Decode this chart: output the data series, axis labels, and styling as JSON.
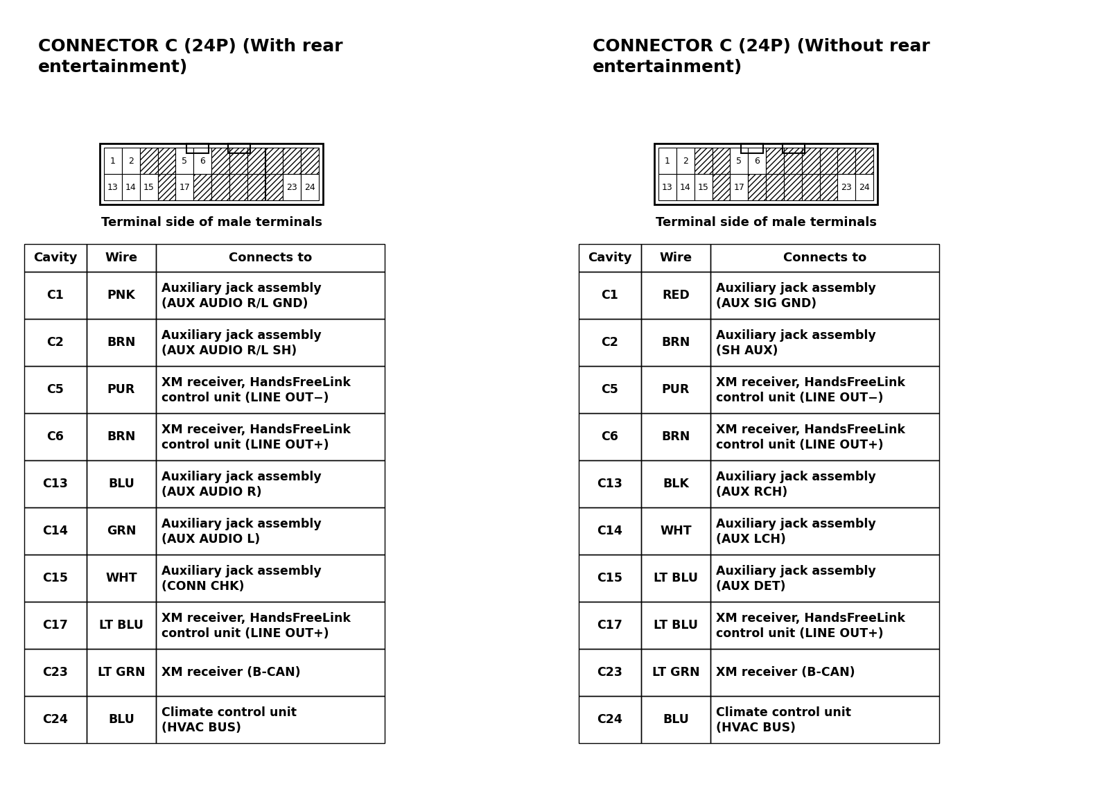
{
  "left_title_line1": "CONNECTOR C (24P) (With rear",
  "left_title_line2": "entertainment)",
  "right_title_line1": "CONNECTOR C (24P) (Without rear",
  "right_title_line2": "entertainment)",
  "connector_label": "Terminal side of male terminals",
  "left_table": {
    "headers": [
      "Cavity",
      "Wire",
      "Connects to"
    ],
    "rows": [
      [
        "C1",
        "PNK",
        "Auxiliary jack assembly\n(AUX AUDIO R/L GND)"
      ],
      [
        "C2",
        "BRN",
        "Auxiliary jack assembly\n(AUX AUDIO R/L SH)"
      ],
      [
        "C5",
        "PUR",
        "XM receiver, HandsFreeLink\ncontrol unit (LINE OUT−)"
      ],
      [
        "C6",
        "BRN",
        "XM receiver, HandsFreeLink\ncontrol unit (LINE OUT+)"
      ],
      [
        "C13",
        "BLU",
        "Auxiliary jack assembly\n(AUX AUDIO R)"
      ],
      [
        "C14",
        "GRN",
        "Auxiliary jack assembly\n(AUX AUDIO L)"
      ],
      [
        "C15",
        "WHT",
        "Auxiliary jack assembly\n(CONN CHK)"
      ],
      [
        "C17",
        "LT BLU",
        "XM receiver, HandsFreeLink\ncontrol unit (LINE OUT+)"
      ],
      [
        "C23",
        "LT GRN",
        "XM receiver (B-CAN)"
      ],
      [
        "C24",
        "BLU",
        "Climate control unit\n(HVAC BUS)"
      ]
    ]
  },
  "right_table": {
    "headers": [
      "Cavity",
      "Wire",
      "Connects to"
    ],
    "rows": [
      [
        "C1",
        "RED",
        "Auxiliary jack assembly\n(AUX SIG GND)"
      ],
      [
        "C2",
        "BRN",
        "Auxiliary jack assembly\n(SH AUX)"
      ],
      [
        "C5",
        "PUR",
        "XM receiver, HandsFreeLink\ncontrol unit (LINE OUT−)"
      ],
      [
        "C6",
        "BRN",
        "XM receiver, HandsFreeLink\ncontrol unit (LINE OUT+)"
      ],
      [
        "C13",
        "BLK",
        "Auxiliary jack assembly\n(AUX RCH)"
      ],
      [
        "C14",
        "WHT",
        "Auxiliary jack assembly\n(AUX LCH)"
      ],
      [
        "C15",
        "LT BLU",
        "Auxiliary jack assembly\n(AUX DET)"
      ],
      [
        "C17",
        "LT BLU",
        "XM receiver, HandsFreeLink\ncontrol unit (LINE OUT+)"
      ],
      [
        "C23",
        "LT GRN",
        "XM receiver (B-CAN)"
      ],
      [
        "C24",
        "BLU",
        "Climate control unit\n(HVAC BUS)"
      ]
    ]
  },
  "bg_color": "#ffffff",
  "text_color": "#000000",
  "title_fontsize": 18,
  "label_fontsize": 13,
  "header_fontsize": 13,
  "body_fontsize": 12.5,
  "connector_top_items": [
    [
      "1",
      false
    ],
    [
      "2",
      false
    ],
    [
      null,
      true
    ],
    [
      null,
      true
    ],
    [
      "5",
      false
    ],
    [
      "6",
      false
    ],
    [
      null,
      true
    ],
    [
      null,
      true
    ],
    [
      null,
      true
    ],
    [
      null,
      true
    ],
    [
      null,
      true
    ],
    [
      null,
      true
    ]
  ],
  "connector_bot_items": [
    [
      "13",
      false
    ],
    [
      "14",
      false
    ],
    [
      "15",
      false
    ],
    [
      null,
      true
    ],
    [
      "17",
      false
    ],
    [
      null,
      true
    ],
    [
      null,
      true
    ],
    [
      null,
      true
    ],
    [
      null,
      true
    ],
    [
      null,
      true
    ],
    [
      "23",
      false
    ],
    [
      "24",
      false
    ]
  ]
}
